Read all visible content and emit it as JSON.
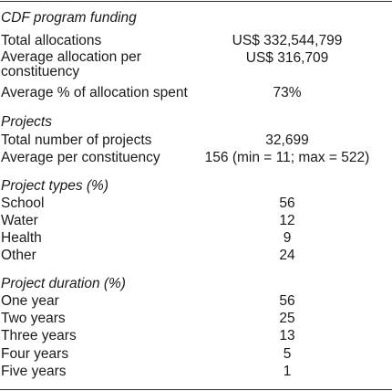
{
  "sections": {
    "funding": {
      "title": "CDF program funding",
      "rows": [
        {
          "label": "Total allocations",
          "value": "US$ 332,544,799"
        },
        {
          "label": "Average allocation per constituency",
          "value": "US$ 316,709"
        },
        {
          "label": "Average % of allocation spent",
          "value": "73%"
        }
      ]
    },
    "projects": {
      "title": "Projects",
      "rows": [
        {
          "label": "Total number of projects",
          "value": "32,699"
        },
        {
          "label": "Average per constituency",
          "value": "156 (min = 11; max = 522)"
        }
      ]
    },
    "types": {
      "title": "Project types (%)",
      "rows": [
        {
          "label": "School",
          "value": "56"
        },
        {
          "label": "Water",
          "value": "12"
        },
        {
          "label": "Health",
          "value": "9"
        },
        {
          "label": "Other",
          "value": "24"
        }
      ]
    },
    "duration": {
      "title": "Project duration (%)",
      "rows": [
        {
          "label": "One year",
          "value": "56"
        },
        {
          "label": "Two years",
          "value": "25"
        },
        {
          "label": "Three years",
          "value": "13"
        },
        {
          "label": "Four years",
          "value": "5"
        },
        {
          "label": "Five years",
          "value": "1"
        }
      ]
    }
  }
}
